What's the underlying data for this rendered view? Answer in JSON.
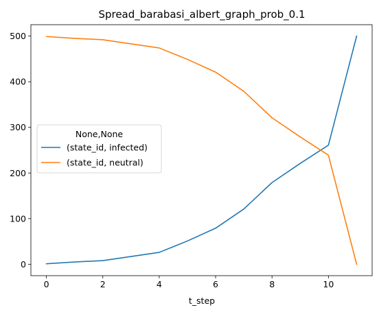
{
  "chart_data": {
    "type": "line",
    "title": "Spread_barabasi_albert_graph_prob_0.1",
    "xlabel": "t_step",
    "ylabel": "",
    "x": [
      0,
      1,
      2,
      3,
      4,
      5,
      6,
      7,
      8,
      9,
      10,
      11
    ],
    "xlim": [
      -0.55,
      11.55
    ],
    "ylim": [
      -25,
      525
    ],
    "xticks": [
      0,
      2,
      4,
      6,
      8,
      10
    ],
    "yticks": [
      0,
      100,
      200,
      300,
      400,
      500
    ],
    "grid": false,
    "legend": {
      "title": "None,None",
      "placement": "center-left"
    },
    "series": [
      {
        "name": "(state_id, infected)",
        "color": "#1f77b4",
        "values": [
          1,
          5,
          8,
          17,
          26,
          51,
          79,
          121,
          179,
          221,
          261,
          500
        ]
      },
      {
        "name": "(state_id, neutral)",
        "color": "#ff7f0e",
        "values": [
          499,
          495,
          492,
          483,
          474,
          449,
          421,
          379,
          321,
          279,
          239,
          0
        ]
      }
    ]
  }
}
